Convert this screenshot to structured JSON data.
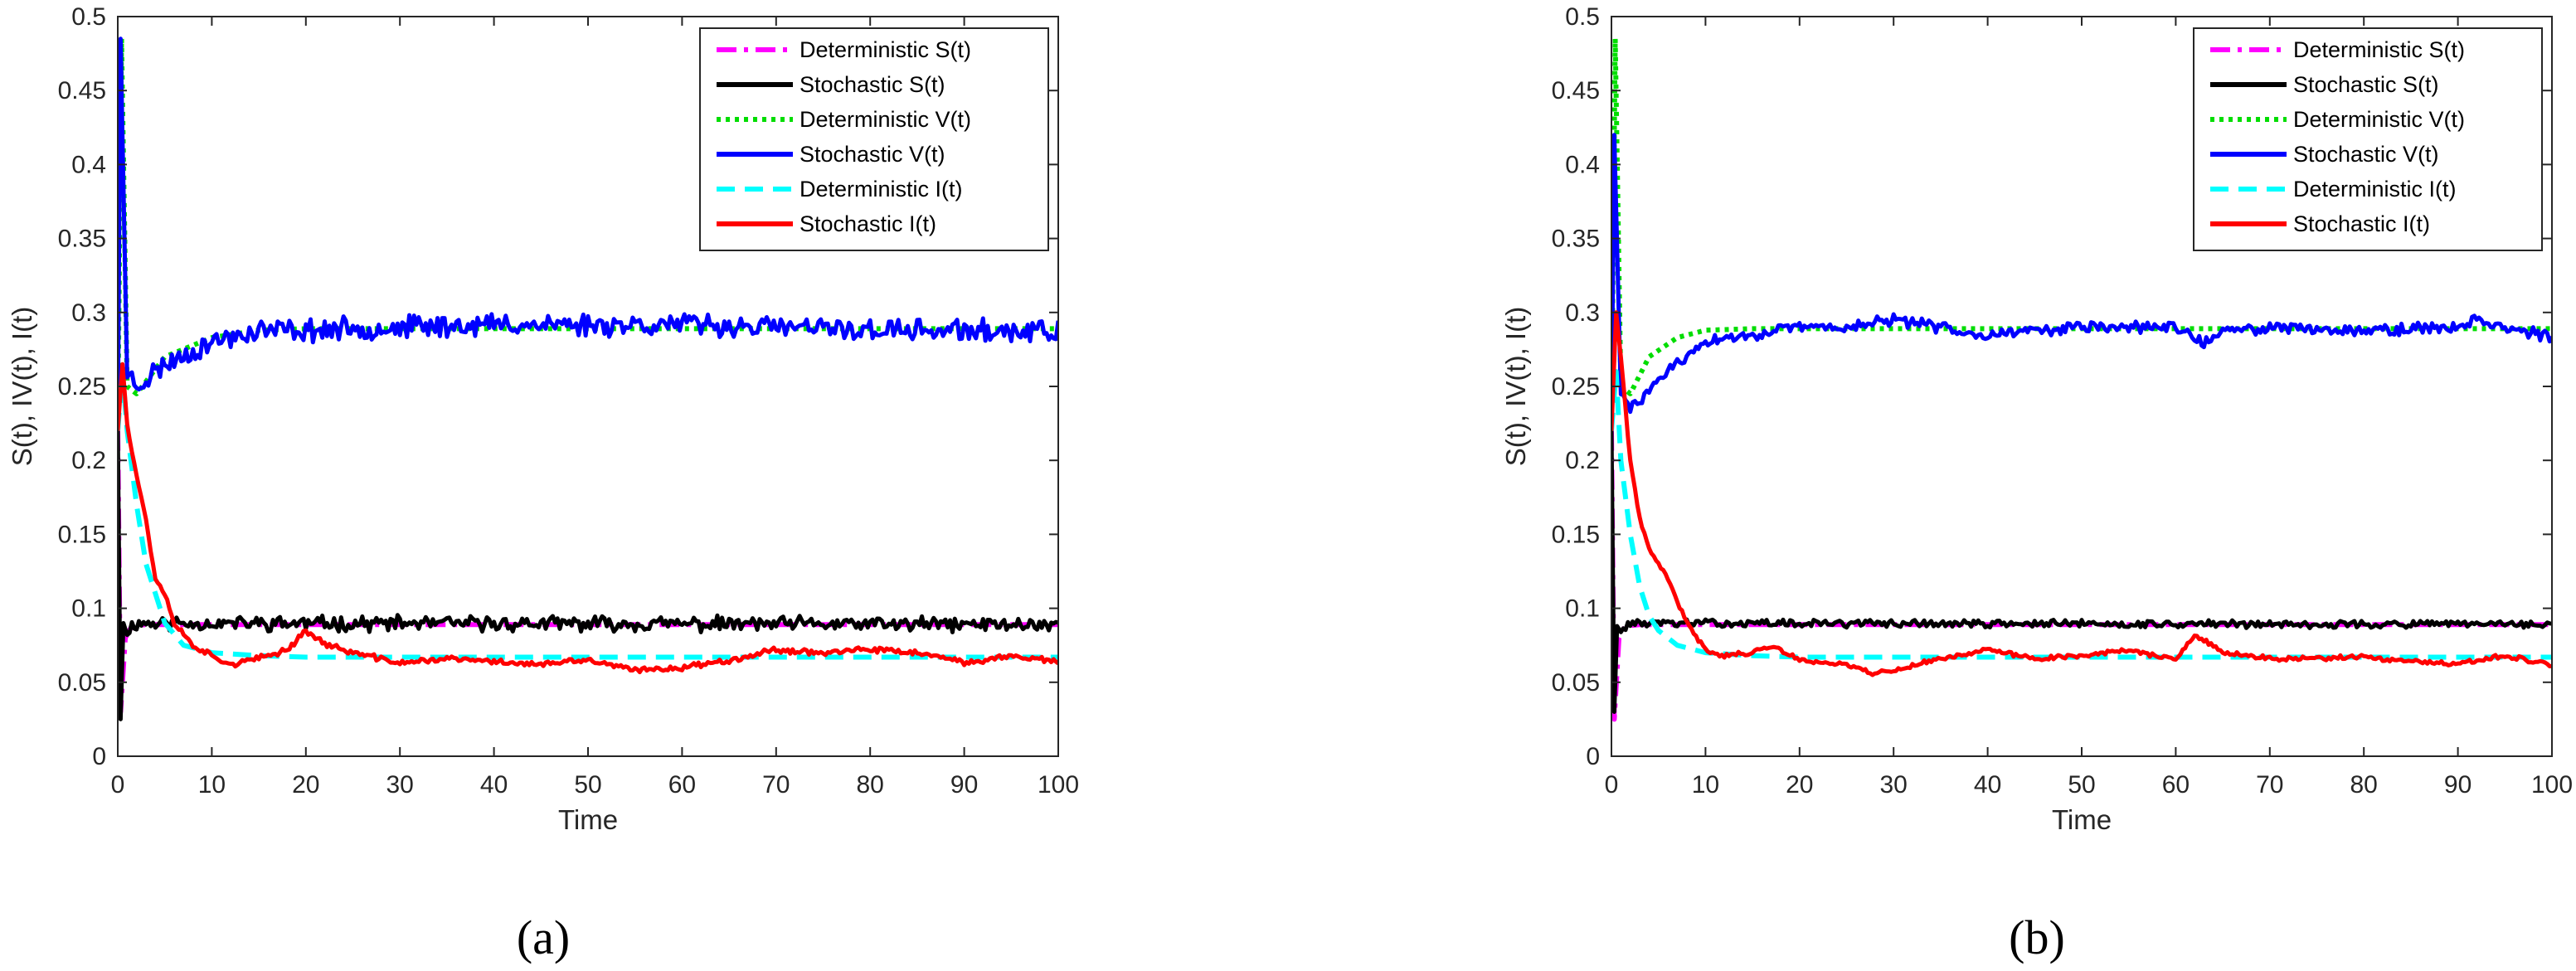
{
  "colors": {
    "det_S": "#ff00ff",
    "sto_S": "#000000",
    "det_V": "#00dd00",
    "sto_V": "#0000ff",
    "det_I": "#00ffff",
    "sto_I": "#ff0000"
  },
  "chart_data": [
    {
      "type": "line",
      "panel_label": "(a)",
      "xlabel": "Time",
      "ylabel": "S(t), IV(t), I(t)",
      "xlim": [
        0,
        100
      ],
      "ylim": [
        0,
        0.5
      ],
      "xticks": [
        "0",
        "10",
        "20",
        "30",
        "40",
        "50",
        "60",
        "70",
        "80",
        "90",
        "100"
      ],
      "yticks": [
        "0",
        "0.05",
        "0.1",
        "0.15",
        "0.2",
        "0.25",
        "0.3",
        "0.35",
        "0.4",
        "0.45",
        "0.5"
      ],
      "legend_position": "top-right",
      "grid": false,
      "series": [
        {
          "name": "Deterministic S(t)",
          "key": "det_S",
          "style": "dashdot",
          "values": [
            [
              0,
              0.22
            ],
            [
              0.3,
              0.03
            ],
            [
              0.8,
              0.08
            ],
            [
              1.5,
              0.088
            ],
            [
              3,
              0.089
            ],
            [
              100,
              0.089
            ]
          ]
        },
        {
          "name": "Stochastic S(t)",
          "key": "sto_S",
          "style": "solid",
          "noise": 0.004,
          "seed": 11,
          "values": [
            [
              0,
              0.22
            ],
            [
              0.3,
              0.025
            ],
            [
              0.6,
              0.09
            ],
            [
              1,
              0.085
            ],
            [
              2,
              0.09
            ],
            [
              100,
              0.089
            ]
          ]
        },
        {
          "name": "Deterministic V(t)",
          "key": "det_V",
          "style": "dotted",
          "values": [
            [
              0,
              0.22
            ],
            [
              0.4,
              0.485
            ],
            [
              1,
              0.25
            ],
            [
              2,
              0.245
            ],
            [
              5,
              0.27
            ],
            [
              10,
              0.283
            ],
            [
              15,
              0.288
            ],
            [
              20,
              0.289
            ],
            [
              100,
              0.289
            ]
          ]
        },
        {
          "name": "Stochastic V(t)",
          "key": "sto_V",
          "style": "solid",
          "noise": 0.006,
          "seed": 23,
          "values": [
            [
              0,
              0.22
            ],
            [
              0.3,
              0.485
            ],
            [
              1,
              0.26
            ],
            [
              2,
              0.25
            ],
            [
              5,
              0.265
            ],
            [
              10,
              0.28
            ],
            [
              15,
              0.288
            ],
            [
              20,
              0.288
            ],
            [
              40,
              0.292
            ],
            [
              60,
              0.292
            ],
            [
              80,
              0.288
            ],
            [
              100,
              0.287
            ]
          ]
        },
        {
          "name": "Deterministic I(t)",
          "key": "det_I",
          "style": "dashed",
          "values": [
            [
              0,
              0.22
            ],
            [
              0.5,
              0.26
            ],
            [
              1,
              0.22
            ],
            [
              2,
              0.17
            ],
            [
              3,
              0.13
            ],
            [
              5,
              0.09
            ],
            [
              7,
              0.075
            ],
            [
              10,
              0.07
            ],
            [
              15,
              0.068
            ],
            [
              20,
              0.067
            ],
            [
              100,
              0.067
            ]
          ]
        },
        {
          "name": "Stochastic I(t)",
          "key": "sto_I",
          "style": "solid",
          "noise": 0.0015,
          "seed": 37,
          "values": [
            [
              0,
              0.22
            ],
            [
              0.5,
              0.265
            ],
            [
              1,
              0.225
            ],
            [
              2,
              0.19
            ],
            [
              3,
              0.16
            ],
            [
              4,
              0.12
            ],
            [
              5,
              0.11
            ],
            [
              6,
              0.09
            ],
            [
              8,
              0.075
            ],
            [
              10,
              0.068
            ],
            [
              12,
              0.062
            ],
            [
              15,
              0.066
            ],
            [
              18,
              0.072
            ],
            [
              20,
              0.085
            ],
            [
              22,
              0.076
            ],
            [
              25,
              0.07
            ],
            [
              30,
              0.063
            ],
            [
              35,
              0.066
            ],
            [
              40,
              0.064
            ],
            [
              45,
              0.062
            ],
            [
              50,
              0.065
            ],
            [
              55,
              0.058
            ],
            [
              60,
              0.06
            ],
            [
              65,
              0.065
            ],
            [
              70,
              0.072
            ],
            [
              75,
              0.07
            ],
            [
              80,
              0.072
            ],
            [
              85,
              0.07
            ],
            [
              90,
              0.063
            ],
            [
              95,
              0.068
            ],
            [
              100,
              0.064
            ]
          ]
        }
      ]
    },
    {
      "type": "line",
      "panel_label": "(b)",
      "xlabel": "Time",
      "ylabel": "S(t), IV(t), I(t)",
      "xlim": [
        0,
        100
      ],
      "ylim": [
        0,
        0.5
      ],
      "xticks": [
        "0",
        "10",
        "20",
        "30",
        "40",
        "50",
        "60",
        "70",
        "80",
        "90",
        "100"
      ],
      "yticks": [
        "0",
        "0.05",
        "0.1",
        "0.15",
        "0.2",
        "0.25",
        "0.3",
        "0.35",
        "0.4",
        "0.45",
        "0.5"
      ],
      "legend_position": "top-right",
      "grid": false,
      "series": [
        {
          "name": "Deterministic S(t)",
          "key": "det_S",
          "style": "dashdot",
          "values": [
            [
              0,
              0.22
            ],
            [
              0.3,
              0.025
            ],
            [
              0.8,
              0.08
            ],
            [
              1.5,
              0.088
            ],
            [
              3,
              0.089
            ],
            [
              100,
              0.089
            ]
          ]
        },
        {
          "name": "Stochastic S(t)",
          "key": "sto_S",
          "style": "solid",
          "noise": 0.002,
          "seed": 13,
          "values": [
            [
              0,
              0.22
            ],
            [
              0.3,
              0.03
            ],
            [
              0.6,
              0.088
            ],
            [
              1,
              0.085
            ],
            [
              2,
              0.09
            ],
            [
              100,
              0.089
            ]
          ]
        },
        {
          "name": "Deterministic V(t)",
          "key": "det_V",
          "style": "dotted",
          "values": [
            [
              0,
              0.22
            ],
            [
              0.4,
              0.485
            ],
            [
              1,
              0.25
            ],
            [
              2,
              0.245
            ],
            [
              4,
              0.27
            ],
            [
              7,
              0.283
            ],
            [
              10,
              0.288
            ],
            [
              15,
              0.289
            ],
            [
              100,
              0.289
            ]
          ]
        },
        {
          "name": "Stochastic V(t)",
          "key": "sto_V",
          "style": "solid",
          "noise": 0.003,
          "seed": 29,
          "values": [
            [
              0,
              0.22
            ],
            [
              0.3,
              0.42
            ],
            [
              1,
              0.245
            ],
            [
              2,
              0.235
            ],
            [
              3,
              0.24
            ],
            [
              5,
              0.255
            ],
            [
              8,
              0.27
            ],
            [
              10,
              0.28
            ],
            [
              15,
              0.285
            ],
            [
              20,
              0.29
            ],
            [
              25,
              0.29
            ],
            [
              30,
              0.295
            ],
            [
              35,
              0.29
            ],
            [
              40,
              0.285
            ],
            [
              45,
              0.288
            ],
            [
              50,
              0.29
            ],
            [
              55,
              0.29
            ],
            [
              60,
              0.29
            ],
            [
              63,
              0.28
            ],
            [
              66,
              0.288
            ],
            [
              70,
              0.29
            ],
            [
              80,
              0.288
            ],
            [
              90,
              0.29
            ],
            [
              92,
              0.296
            ],
            [
              95,
              0.29
            ],
            [
              100,
              0.283
            ]
          ]
        },
        {
          "name": "Deterministic I(t)",
          "key": "det_I",
          "style": "dashed",
          "values": [
            [
              0,
              0.22
            ],
            [
              0.5,
              0.26
            ],
            [
              1,
              0.2
            ],
            [
              2,
              0.15
            ],
            [
              3,
              0.115
            ],
            [
              4,
              0.095
            ],
            [
              5,
              0.085
            ],
            [
              7,
              0.075
            ],
            [
              10,
              0.07
            ],
            [
              15,
              0.068
            ],
            [
              20,
              0.067
            ],
            [
              100,
              0.067
            ]
          ]
        },
        {
          "name": "Stochastic I(t)",
          "key": "sto_I",
          "style": "solid",
          "noise": 0.0012,
          "seed": 41,
          "values": [
            [
              0,
              0.22
            ],
            [
              0.5,
              0.3
            ],
            [
              1,
              0.27
            ],
            [
              2,
              0.2
            ],
            [
              3,
              0.16
            ],
            [
              4,
              0.14
            ],
            [
              6,
              0.12
            ],
            [
              8,
              0.09
            ],
            [
              10,
              0.072
            ],
            [
              12,
              0.068
            ],
            [
              15,
              0.07
            ],
            [
              17,
              0.075
            ],
            [
              20,
              0.065
            ],
            [
              25,
              0.062
            ],
            [
              28,
              0.056
            ],
            [
              30,
              0.058
            ],
            [
              35,
              0.066
            ],
            [
              40,
              0.072
            ],
            [
              45,
              0.066
            ],
            [
              50,
              0.068
            ],
            [
              55,
              0.072
            ],
            [
              60,
              0.065
            ],
            [
              62,
              0.082
            ],
            [
              65,
              0.07
            ],
            [
              70,
              0.066
            ],
            [
              75,
              0.066
            ],
            [
              80,
              0.067
            ],
            [
              85,
              0.064
            ],
            [
              90,
              0.062
            ],
            [
              95,
              0.068
            ],
            [
              100,
              0.062
            ]
          ]
        }
      ]
    }
  ]
}
